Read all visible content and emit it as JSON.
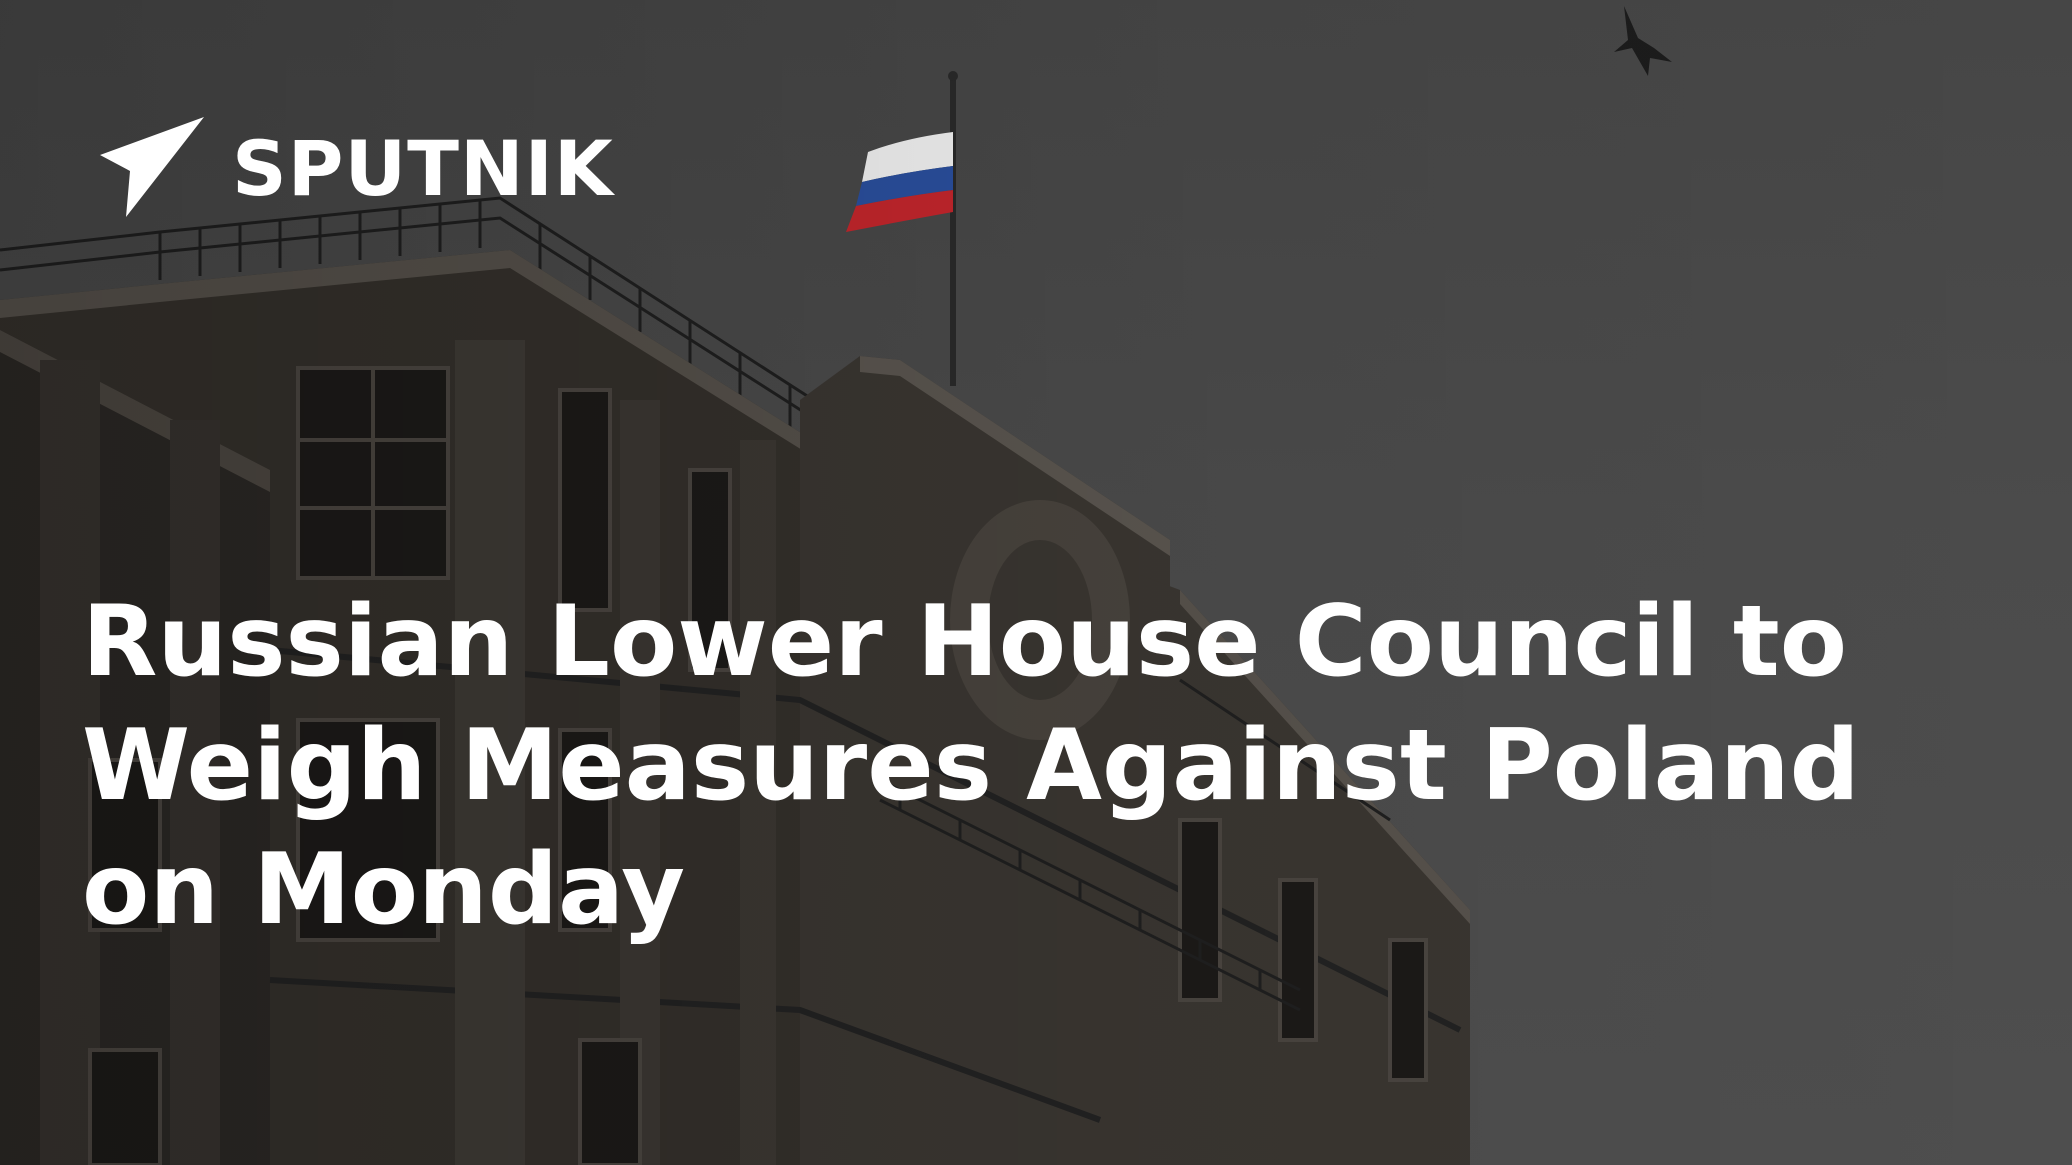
{
  "brand": {
    "logo_text": "SPUTNIK",
    "logo_icon": "sputnik-triangle-icon"
  },
  "headline": {
    "line1": "Russian Lower House Council to",
    "line2": "Weigh Measures Against Poland",
    "line3": "on Monday"
  },
  "colors": {
    "sky": "#4a4a4a",
    "building": "#2f2c28",
    "text": "#ffffff",
    "flag_white": "#f2f2f2",
    "flag_blue": "#2a4f9e",
    "flag_red": "#c4262c"
  }
}
